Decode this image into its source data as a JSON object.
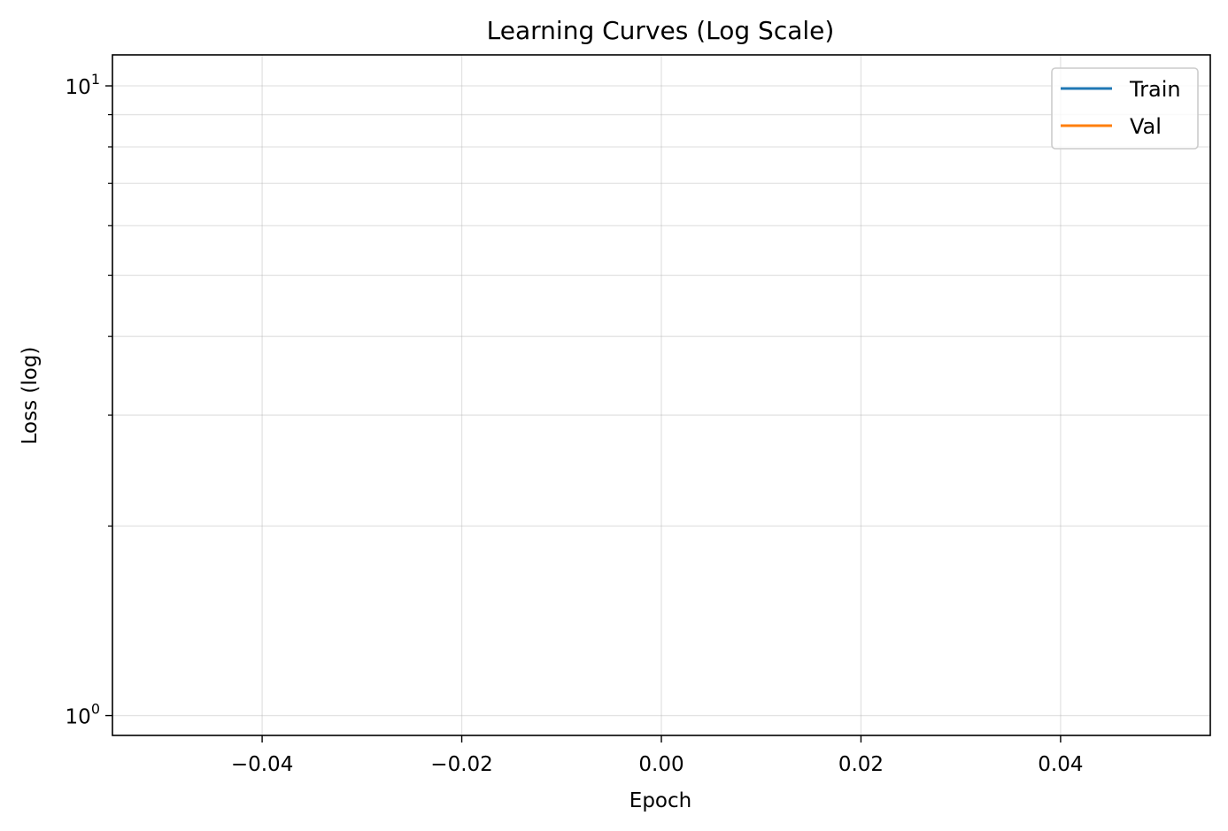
{
  "chart_data": {
    "type": "line",
    "title": "Learning Curves (Log Scale)",
    "xlabel": "Epoch",
    "ylabel": "Loss (log)",
    "xlim": [
      -0.055,
      0.055
    ],
    "ylim": [
      0.93,
      11.2
    ],
    "yscale": "log",
    "xticks": [
      -0.04,
      -0.02,
      0.0,
      0.02,
      0.04
    ],
    "xtick_labels": [
      "−0.04",
      "−0.02",
      "0.00",
      "0.02",
      "0.04"
    ],
    "yticks_major": [
      1,
      10
    ],
    "ytick_labels": [
      {
        "base": "10",
        "exp": "0"
      },
      {
        "base": "10",
        "exp": "1"
      }
    ],
    "yticks_minor": [
      2,
      3,
      4,
      5,
      6,
      7,
      8,
      9
    ],
    "grid": true,
    "legend_position": "top-right",
    "series": [
      {
        "name": "Train",
        "color": "#1f77b4",
        "x": [],
        "y": []
      },
      {
        "name": "Val",
        "color": "#ff7f0e",
        "x": [],
        "y": []
      }
    ]
  }
}
